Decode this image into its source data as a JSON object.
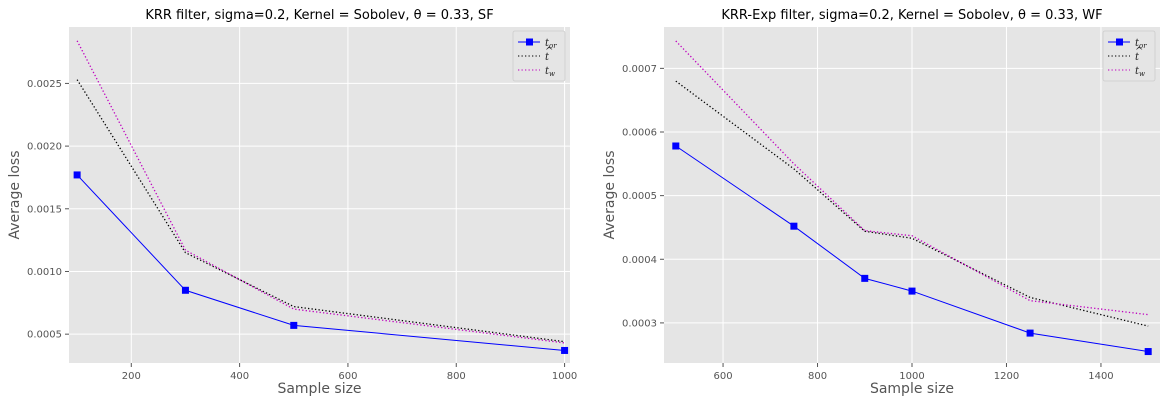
{
  "chart_data": [
    {
      "type": "line",
      "title": "KRR filter, sigma=0.2, Kernel = Sobolev, θ = 0.33, SF",
      "xlabel": "Sample size",
      "ylabel": "Average loss",
      "xlim": [
        85,
        1010
      ],
      "ylim": [
        0.00027,
        0.00295
      ],
      "xticks": [
        200,
        400,
        600,
        800,
        1000
      ],
      "yticks": [
        0.0005,
        0.001,
        0.0015,
        0.002,
        0.0025
      ],
      "xtick_labels": [
        "200",
        "400",
        "600",
        "800",
        "1000"
      ],
      "ytick_labels": [
        "0.0005",
        "0.0010",
        "0.0015",
        "0.0020",
        "0.0025"
      ],
      "grid": true,
      "legend_position": "top-right",
      "x": [
        100,
        300,
        500,
        1000
      ],
      "series": [
        {
          "name": "t_or",
          "label_main": "t",
          "label_sub": "or",
          "label_hat": false,
          "color": "#0000ff",
          "style": "solid",
          "marker": "square",
          "values": [
            0.00177,
            0.00085,
            0.00057,
            0.00037
          ]
        },
        {
          "name": "t̂",
          "label_main": "t",
          "label_sub": "",
          "label_hat": true,
          "color": "#000000",
          "style": "dotted",
          "marker": "none",
          "values": [
            0.00253,
            0.00115,
            0.00072,
            0.00044
          ]
        },
        {
          "name": "t_w",
          "label_main": "t",
          "label_sub": "w",
          "label_hat": false,
          "color": "#bf00bf",
          "style": "dotted",
          "marker": "none",
          "values": [
            0.00284,
            0.00117,
            0.0007,
            0.00043
          ]
        }
      ]
    },
    {
      "type": "line",
      "title": "KRR-Exp filter, sigma=0.2, Kernel = Sobolev, θ = 0.33, WF",
      "xlabel": "Sample size",
      "ylabel": "Average loss",
      "xlim": [
        475,
        1525
      ],
      "ylim": [
        0.000237,
        0.000765
      ],
      "xticks": [
        600,
        800,
        1000,
        1200,
        1400
      ],
      "yticks": [
        0.0003,
        0.0004,
        0.0005,
        0.0006,
        0.0007
      ],
      "xtick_labels": [
        "600",
        "800",
        "1000",
        "1200",
        "1400"
      ],
      "ytick_labels": [
        "0.0003",
        "0.0004",
        "0.0005",
        "0.0006",
        "0.0007"
      ],
      "grid": true,
      "legend_position": "top-right",
      "x": [
        500,
        750,
        900,
        1000,
        1250,
        1500
      ],
      "series": [
        {
          "name": "t_or",
          "label_main": "t",
          "label_sub": "or",
          "label_hat": false,
          "color": "#0000ff",
          "style": "solid",
          "marker": "square",
          "values": [
            0.000578,
            0.000452,
            0.00037,
            0.00035,
            0.000284,
            0.000255
          ]
        },
        {
          "name": "t̂",
          "label_main": "t",
          "label_sub": "",
          "label_hat": true,
          "color": "#000000",
          "style": "dotted",
          "marker": "none",
          "values": [
            0.00068,
            0.000542,
            0.000444,
            0.000433,
            0.00034,
            0.000295
          ]
        },
        {
          "name": "t_w",
          "label_main": "t",
          "label_sub": "w",
          "label_hat": false,
          "color": "#bf00bf",
          "style": "dotted",
          "marker": "none",
          "values": [
            0.000743,
            0.00055,
            0.000445,
            0.000437,
            0.000335,
            0.000313
          ]
        }
      ]
    }
  ]
}
